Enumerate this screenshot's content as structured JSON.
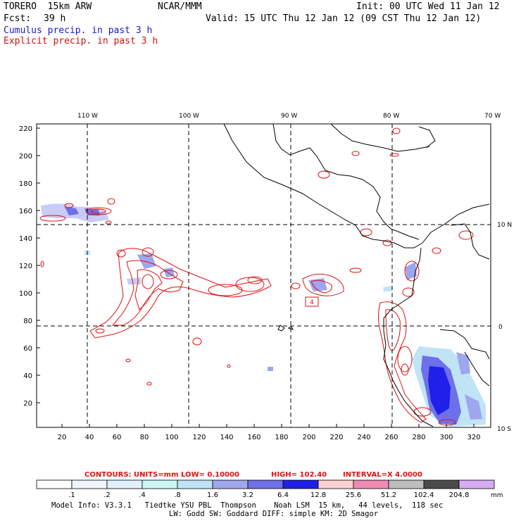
{
  "header": {
    "model": "TORERO  15km ARW",
    "fcst_label": "Fcst:",
    "fcst_hours": "39 h",
    "org": "NCAR/MMM",
    "init": "Init: 00 UTC Wed 11 Jan 12",
    "valid": "Valid: 15 UTC Thu 12 Jan 12 (09 CST Thu 12 Jan 12)"
  },
  "legend_titles": {
    "cumulus": "Cumulus precip. in past 3 h",
    "explicit": "Explicit precip. in past 3 h"
  },
  "map": {
    "lon_labels": [
      "110 W",
      "100 W",
      "90 W",
      "80 W",
      "70 W"
    ],
    "lat_labels": [
      "10 N",
      "0",
      "10 S"
    ],
    "y_ticks": [
      "220",
      "200",
      "180",
      "160",
      "140",
      "120",
      "100",
      "80",
      "60",
      "40",
      "20"
    ],
    "x_ticks": [
      "20",
      "40",
      "60",
      "80",
      "100",
      "120",
      "140",
      "160",
      "180",
      "200",
      "220",
      "240",
      "260",
      "280",
      "300",
      "320"
    ],
    "max_box_label": "4",
    "colors": {
      "coast": "#000000",
      "explicit_contour": "#dd1111",
      "cumulus_shade": "#3a3ae6",
      "grid": "#000000"
    }
  },
  "contour_info": {
    "contours": "CONTOURS:  UNITS=mm  LOW= 0.10000",
    "high": "HIGH=  102.40",
    "interval": "INTERVAL=X  4.0000"
  },
  "colorbar": {
    "colors": [
      "#ffffff",
      "#f0f4ff",
      "#e0f0ff",
      "#ccf6f6",
      "#c0e4f6",
      "#9ea6f0",
      "#6e70ea",
      "#2020e8",
      "#ffd0d0",
      "#f08cb4",
      "#bebebe",
      "#4a4a4a",
      "#d8aaf4"
    ],
    "labels": [
      ".1",
      ".2",
      ".4",
      ".8",
      "1.6",
      "3.2",
      "6.4",
      "12.8",
      "25.6",
      "51.2",
      "102.4",
      "204.8"
    ],
    "units": "mm"
  },
  "footer": {
    "line1": "Model Info: V3.3.1   Tiedtke YSU PBL  Thompson    Noah LSM  15 km,   44 levels,  118 sec",
    "line2": "LW: Godd SW: Goddard DIFF: simple KM: 2D Smagor"
  }
}
